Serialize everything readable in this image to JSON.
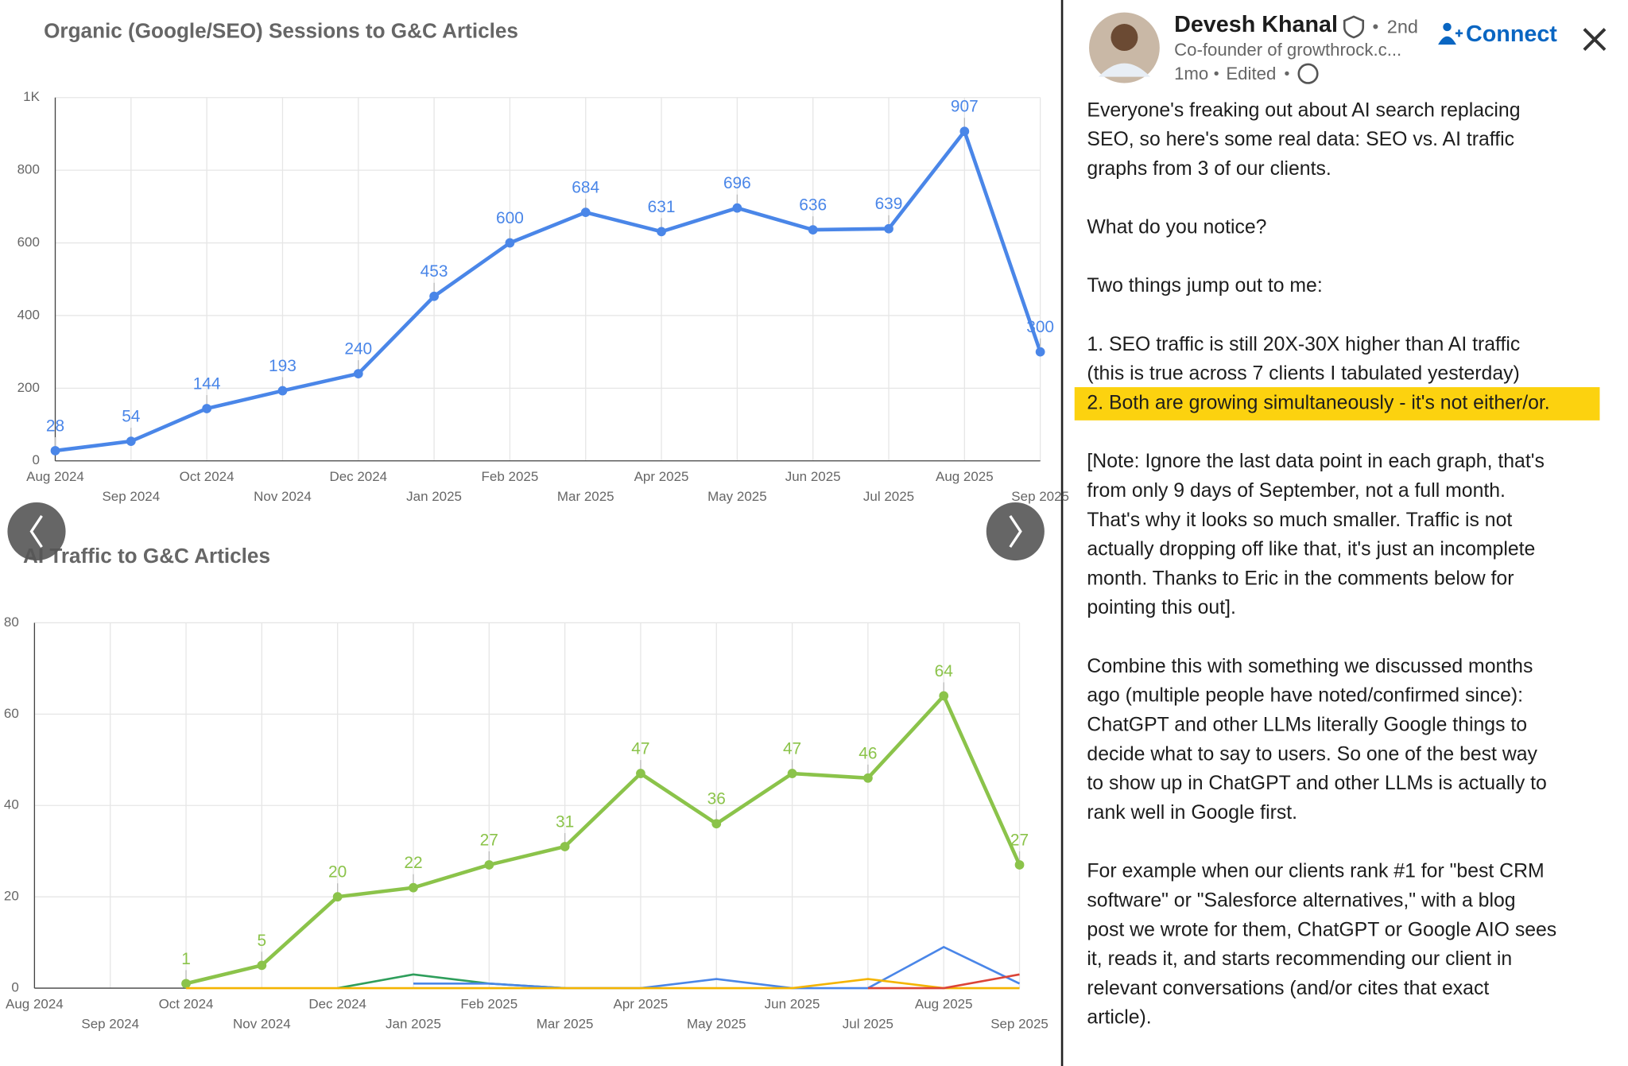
{
  "chart_data": [
    {
      "type": "line",
      "title": "Organic (Google/SEO) Sessions to G&C Articles",
      "categories": [
        "Aug 2024",
        "Sep 2024",
        "Oct 2024",
        "Nov 2024",
        "Dec 2024",
        "Jan 2025",
        "Feb 2025",
        "Mar 2025",
        "Apr 2025",
        "May 2025",
        "Jun 2025",
        "Jul 2025",
        "Aug 2025",
        "Sep 2025"
      ],
      "series": [
        {
          "color": "#4a86e8",
          "markers": true,
          "data_labels": true,
          "values": [
            28,
            54,
            144,
            193,
            240,
            453,
            600,
            684,
            631,
            696,
            636,
            639,
            907,
            300
          ]
        }
      ],
      "ylim": [
        0,
        1000
      ],
      "yticks": [
        0,
        200,
        400,
        600,
        800,
        {
          "value": 1000,
          "label": "1K"
        }
      ],
      "grid": true
    },
    {
      "type": "line",
      "title": "AI Traffic to G&C Articles",
      "categories": [
        "Aug 2024",
        "Sep 2024",
        "Oct 2024",
        "Nov 2024",
        "Dec 2024",
        "Jan 2025",
        "Feb 2025",
        "Mar 2025",
        "Apr 2025",
        "May 2025",
        "Jun 2025",
        "Jul 2025",
        "Aug 2025",
        "Sep 2025"
      ],
      "series": [
        {
          "color": "#8bc34a",
          "markers": true,
          "data_labels": true,
          "values": [
            null,
            null,
            1,
            5,
            20,
            22,
            27,
            31,
            47,
            36,
            47,
            46,
            64,
            27
          ]
        },
        {
          "color": "#2e9e5b",
          "values": [
            null,
            null,
            null,
            null,
            0,
            3,
            1,
            0,
            null,
            null,
            null,
            null,
            null,
            null
          ]
        },
        {
          "color": "#4a86e8",
          "values": [
            null,
            null,
            null,
            null,
            null,
            1,
            1,
            0,
            0,
            2,
            0,
            0,
            9,
            1
          ]
        },
        {
          "color": "#f4b400",
          "values": [
            null,
            null,
            0,
            0,
            0,
            0,
            0,
            0,
            0,
            0,
            0,
            2,
            0,
            0
          ]
        },
        {
          "color": "#db4437",
          "values": [
            null,
            null,
            null,
            null,
            null,
            null,
            null,
            null,
            null,
            null,
            null,
            0,
            0,
            3
          ]
        }
      ],
      "ylim": [
        0,
        80
      ],
      "yticks": [
        0,
        20,
        40,
        60,
        80
      ],
      "grid": true
    }
  ],
  "post": {
    "author": "Devesh Khanal",
    "degree": "2nd",
    "headline": "Co-founder of growthrock.c...",
    "time": "1mo",
    "edited": "Edited",
    "connect": "Connect",
    "paragraphs": [
      [
        "Everyone's freaking out about AI search replacing",
        "SEO, so here's some real data: SEO vs. AI traffic",
        "graphs from 3 of our clients."
      ],
      [
        "What do you notice?"
      ],
      [
        "Two things jump out to me:"
      ],
      [
        "1. SEO traffic is still 20X-30X higher than AI traffic",
        "(this is true across 7 clients I tabulated yesterday)",
        "2. Both are growing simultaneously - it's not either/or."
      ],
      [
        "[Note: Ignore the last data point in each graph, that's",
        "from only 9 days of September, not a full month.",
        "That's why it looks so much smaller. Traffic is not",
        "actually dropping off like that, it's just an incomplete",
        "month. Thanks to Eric in the comments below for",
        "pointing this out]."
      ],
      [
        "Combine this with something we discussed months",
        "ago (multiple people have noted/confirmed since):",
        "ChatGPT and other LLMs literally Google things to",
        "decide what to say to users. So one of the best way",
        "to show up in ChatGPT and other LLMs is actually to",
        "rank well in Google first."
      ],
      [
        "For example when our clients rank #1 for \"best CRM",
        "software\" or \"Salesforce alternatives,\" with a blog",
        "post we wrote for them, ChatGPT or Google AIO sees",
        "it, reads it, and starts recommending our client in",
        "relevant conversations (and/or cites that exact",
        "article)."
      ]
    ],
    "highlighted_line": [
      3,
      2
    ]
  }
}
